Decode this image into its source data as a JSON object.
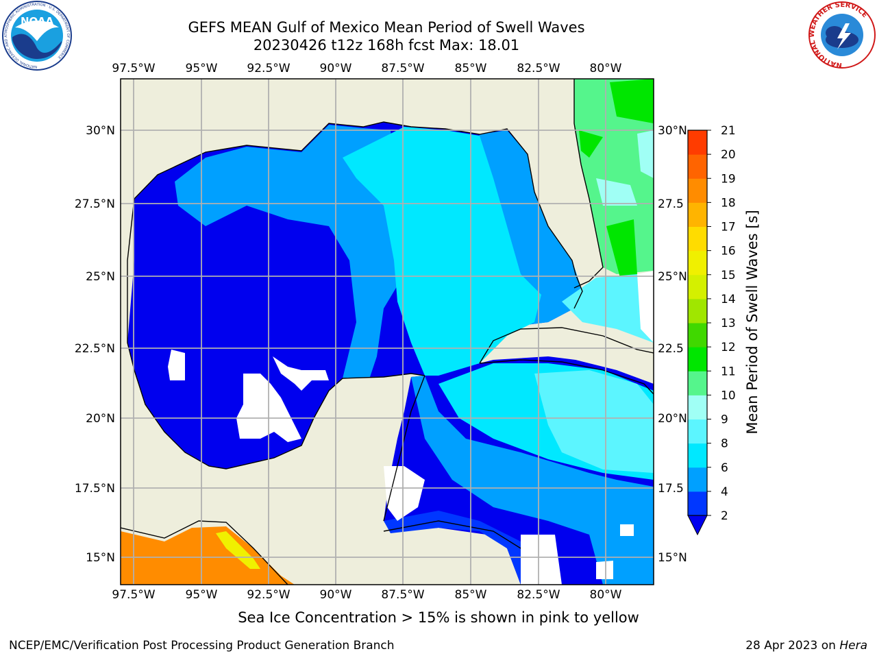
{
  "title_line1": "GEFS MEAN Gulf of Mexico Mean Period of Swell Waves",
  "title_line2": "20230426 t12z 168h fcst   Max: 18.01",
  "lon_ticks": [
    "97.5°W",
    "95°W",
    "92.5°W",
    "90°W",
    "87.5°W",
    "85°W",
    "82.5°W",
    "80°W"
  ],
  "lat_ticks_left": [
    "30°N",
    "27.5°N",
    "25°N",
    "22.5°N",
    "20°N",
    "17.5°N",
    "15°N"
  ],
  "lat_ticks_right": [
    "30°N",
    "27.5",
    "25°N",
    "22.5",
    "20°N",
    "17.5",
    "15°N"
  ],
  "colorbar": {
    "label": "Mean Period of Swell Waves [s]",
    "ticks": [
      "2",
      "4",
      "6",
      "8",
      "9",
      "10",
      "11",
      "12",
      "13",
      "14",
      "15",
      "16",
      "17",
      "18",
      "19",
      "20",
      "21"
    ],
    "colors": [
      "#0037ff",
      "#00a0ff",
      "#00e8ff",
      "#5cf5ff",
      "#a0fff5",
      "#55f58c",
      "#00e600",
      "#40d800",
      "#a0e600",
      "#d4f000",
      "#f0f000",
      "#ffdc00",
      "#ffb400",
      "#ff8c00",
      "#ff6400",
      "#ff3c00",
      "#ff0000"
    ],
    "extend_color": "#0000ee"
  },
  "note": "Sea Ice Concentration > 15% is shown in pink to yellow",
  "credit": "NCEP/EMC/Verification Post Processing Product Generation Branch",
  "date": "28 Apr 2023 on",
  "date_host": "Hera",
  "logo_left_text": "NOAA",
  "logo_left_ring": "NATIONAL OCEANIC AND ATMOSPHERIC ADMINISTRATION · U.S. DEPARTMENT OF COMMERCE",
  "logo_right_ring": "NATIONAL WEATHER SERVICE"
}
